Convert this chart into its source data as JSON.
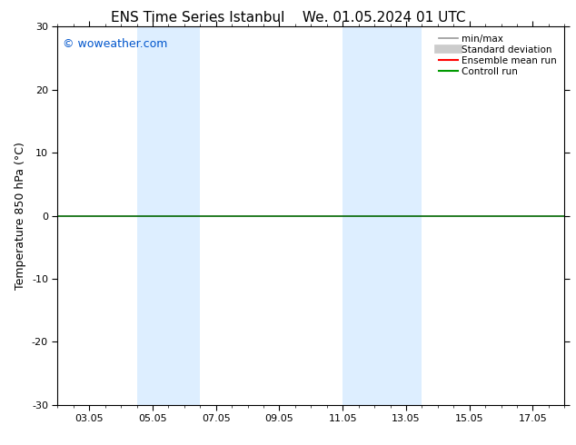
{
  "title_left": "ENS Time Series Istanbul",
  "title_right": "We. 01.05.2024 01 UTC",
  "ylabel": "Temperature 850 hPa (°C)",
  "ylim": [
    -30,
    30
  ],
  "yticks": [
    -30,
    -20,
    -10,
    0,
    10,
    20,
    30
  ],
  "xlim": [
    0,
    16
  ],
  "xtick_labels": [
    "03.05",
    "05.05",
    "07.05",
    "09.05",
    "11.05",
    "13.05",
    "15.05",
    "17.05"
  ],
  "xtick_positions": [
    1,
    3,
    5,
    7,
    9,
    11,
    13,
    15
  ],
  "bg_color": "#ffffff",
  "plot_bg_color": "#ffffff",
  "shaded_bands": [
    {
      "x_start": 2.5,
      "x_end": 4.5,
      "color": "#ddeeff"
    },
    {
      "x_start": 9.0,
      "x_end": 11.5,
      "color": "#ddeeff"
    }
  ],
  "zero_line_color": "#006600",
  "watermark": "© woweather.com",
  "watermark_color": "#0055cc",
  "legend_items": [
    {
      "label": "min/max",
      "color": "#999999",
      "lw": 1.2
    },
    {
      "label": "Standard deviation",
      "color": "#cccccc",
      "lw": 7
    },
    {
      "label": "Ensemble mean run",
      "color": "#ff0000",
      "lw": 1.5
    },
    {
      "label": "Controll run",
      "color": "#009900",
      "lw": 1.5
    }
  ],
  "border_color": "#000000",
  "title_fontsize": 11,
  "axis_label_fontsize": 9,
  "tick_fontsize": 8,
  "watermark_fontsize": 9,
  "legend_fontsize": 7.5
}
